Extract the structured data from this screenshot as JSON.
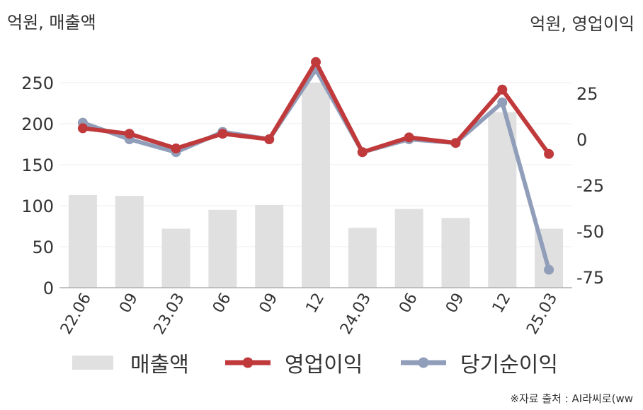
{
  "unit_left": "억원, 매출액",
  "unit_right": "억원, 영업이익",
  "source": "※자료 출처 : AI라씨로(ww",
  "colors": {
    "bar": "#e0e0e0",
    "op": "#c0393b",
    "net": "#919eba",
    "axis": "#b0b0b0",
    "grid": "#eeeeee"
  },
  "chart_data": {
    "type": "bar",
    "categories": [
      "22.06",
      "09",
      "23.03",
      "06",
      "09",
      "12",
      "24.03",
      "06",
      "09",
      "12",
      "25.03"
    ],
    "ylim_left": [
      0,
      250
    ],
    "yticks_left": [
      0,
      50,
      100,
      150,
      200,
      250
    ],
    "ylim_right": [
      -75,
      25
    ],
    "yticks_right": [
      -75,
      -50,
      -25,
      0,
      25
    ],
    "series": [
      {
        "name": "매출액",
        "type": "bar",
        "axis": "left",
        "values": [
          113,
          112,
          72,
          95,
          101,
          250,
          73,
          96,
          85,
          214,
          72
        ]
      },
      {
        "name": "영업이익",
        "type": "line",
        "axis": "right",
        "values": [
          6,
          3,
          -5,
          3,
          0,
          42,
          -7,
          1,
          -2,
          27,
          -8
        ]
      },
      {
        "name": "당기순이익",
        "type": "line",
        "axis": "right",
        "values": [
          9,
          0,
          -7,
          4,
          0,
          38,
          -7,
          0,
          -2,
          20,
          -71
        ]
      }
    ]
  }
}
